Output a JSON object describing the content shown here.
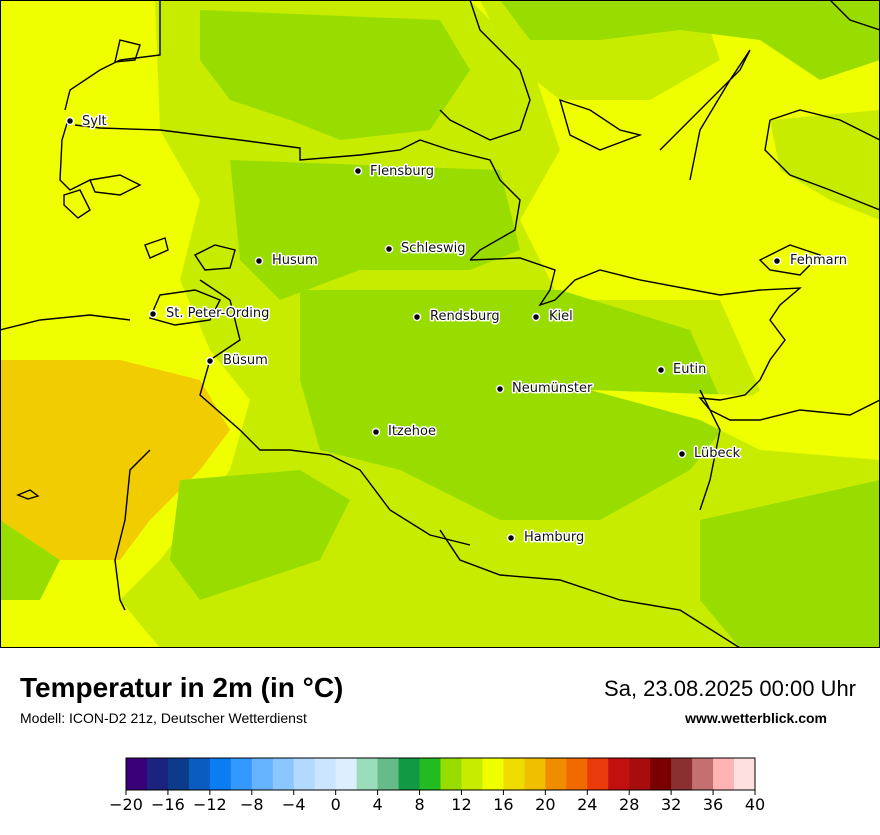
{
  "title": "Temperatur in 2m (in °C)",
  "model": "Modell: ICON-D2 21z, Deutscher Wetterdienst",
  "datetime": "Sa, 23.08.2025 00:00 Uhr",
  "website": "www.wetterblick.com",
  "colors": {
    "sea_warm": "#f5e600",
    "yellow": "#f0ff00",
    "yellow_green": "#c8ec00",
    "green": "#99dd00",
    "orange_sea": "#f0cc00",
    "coast": "#000000"
  },
  "cities": [
    {
      "name": "Sylt"
    },
    {
      "name": "Flensburg"
    },
    {
      "name": "Schleswig"
    },
    {
      "name": "Husum"
    },
    {
      "name": "Fehmarn"
    },
    {
      "name": "St. Peter-Ording"
    },
    {
      "name": "Rendsburg"
    },
    {
      "name": "Kiel"
    },
    {
      "name": "Büsum"
    },
    {
      "name": "Eutin"
    },
    {
      "name": "Neumünster"
    },
    {
      "name": "Itzehoe"
    },
    {
      "name": "Lübeck"
    },
    {
      "name": "Hamburg"
    }
  ],
  "legend": {
    "colors": [
      "#3a007a",
      "#1a237e",
      "#0d3b8c",
      "#0a5cc0",
      "#0a7ef0",
      "#3399ff",
      "#66b3ff",
      "#8cc6ff",
      "#b3d9ff",
      "#cce5ff",
      "#ddeeff",
      "#99ddbb",
      "#66bb88",
      "#119944",
      "#22bb22",
      "#99dd00",
      "#c8ec00",
      "#f0ff00",
      "#f0dd00",
      "#f0c000",
      "#f08c00",
      "#f06a00",
      "#e83a0a",
      "#c01010",
      "#a80d0d",
      "#7a0000",
      "#8b3030",
      "#c47070",
      "#ffb3b3",
      "#ffe0e0"
    ],
    "ticks": [
      "−20",
      "−16",
      "−12",
      "−8",
      "−4",
      "0",
      "4",
      "8",
      "12",
      "16",
      "20",
      "24",
      "28",
      "32",
      "36",
      "40"
    ]
  }
}
